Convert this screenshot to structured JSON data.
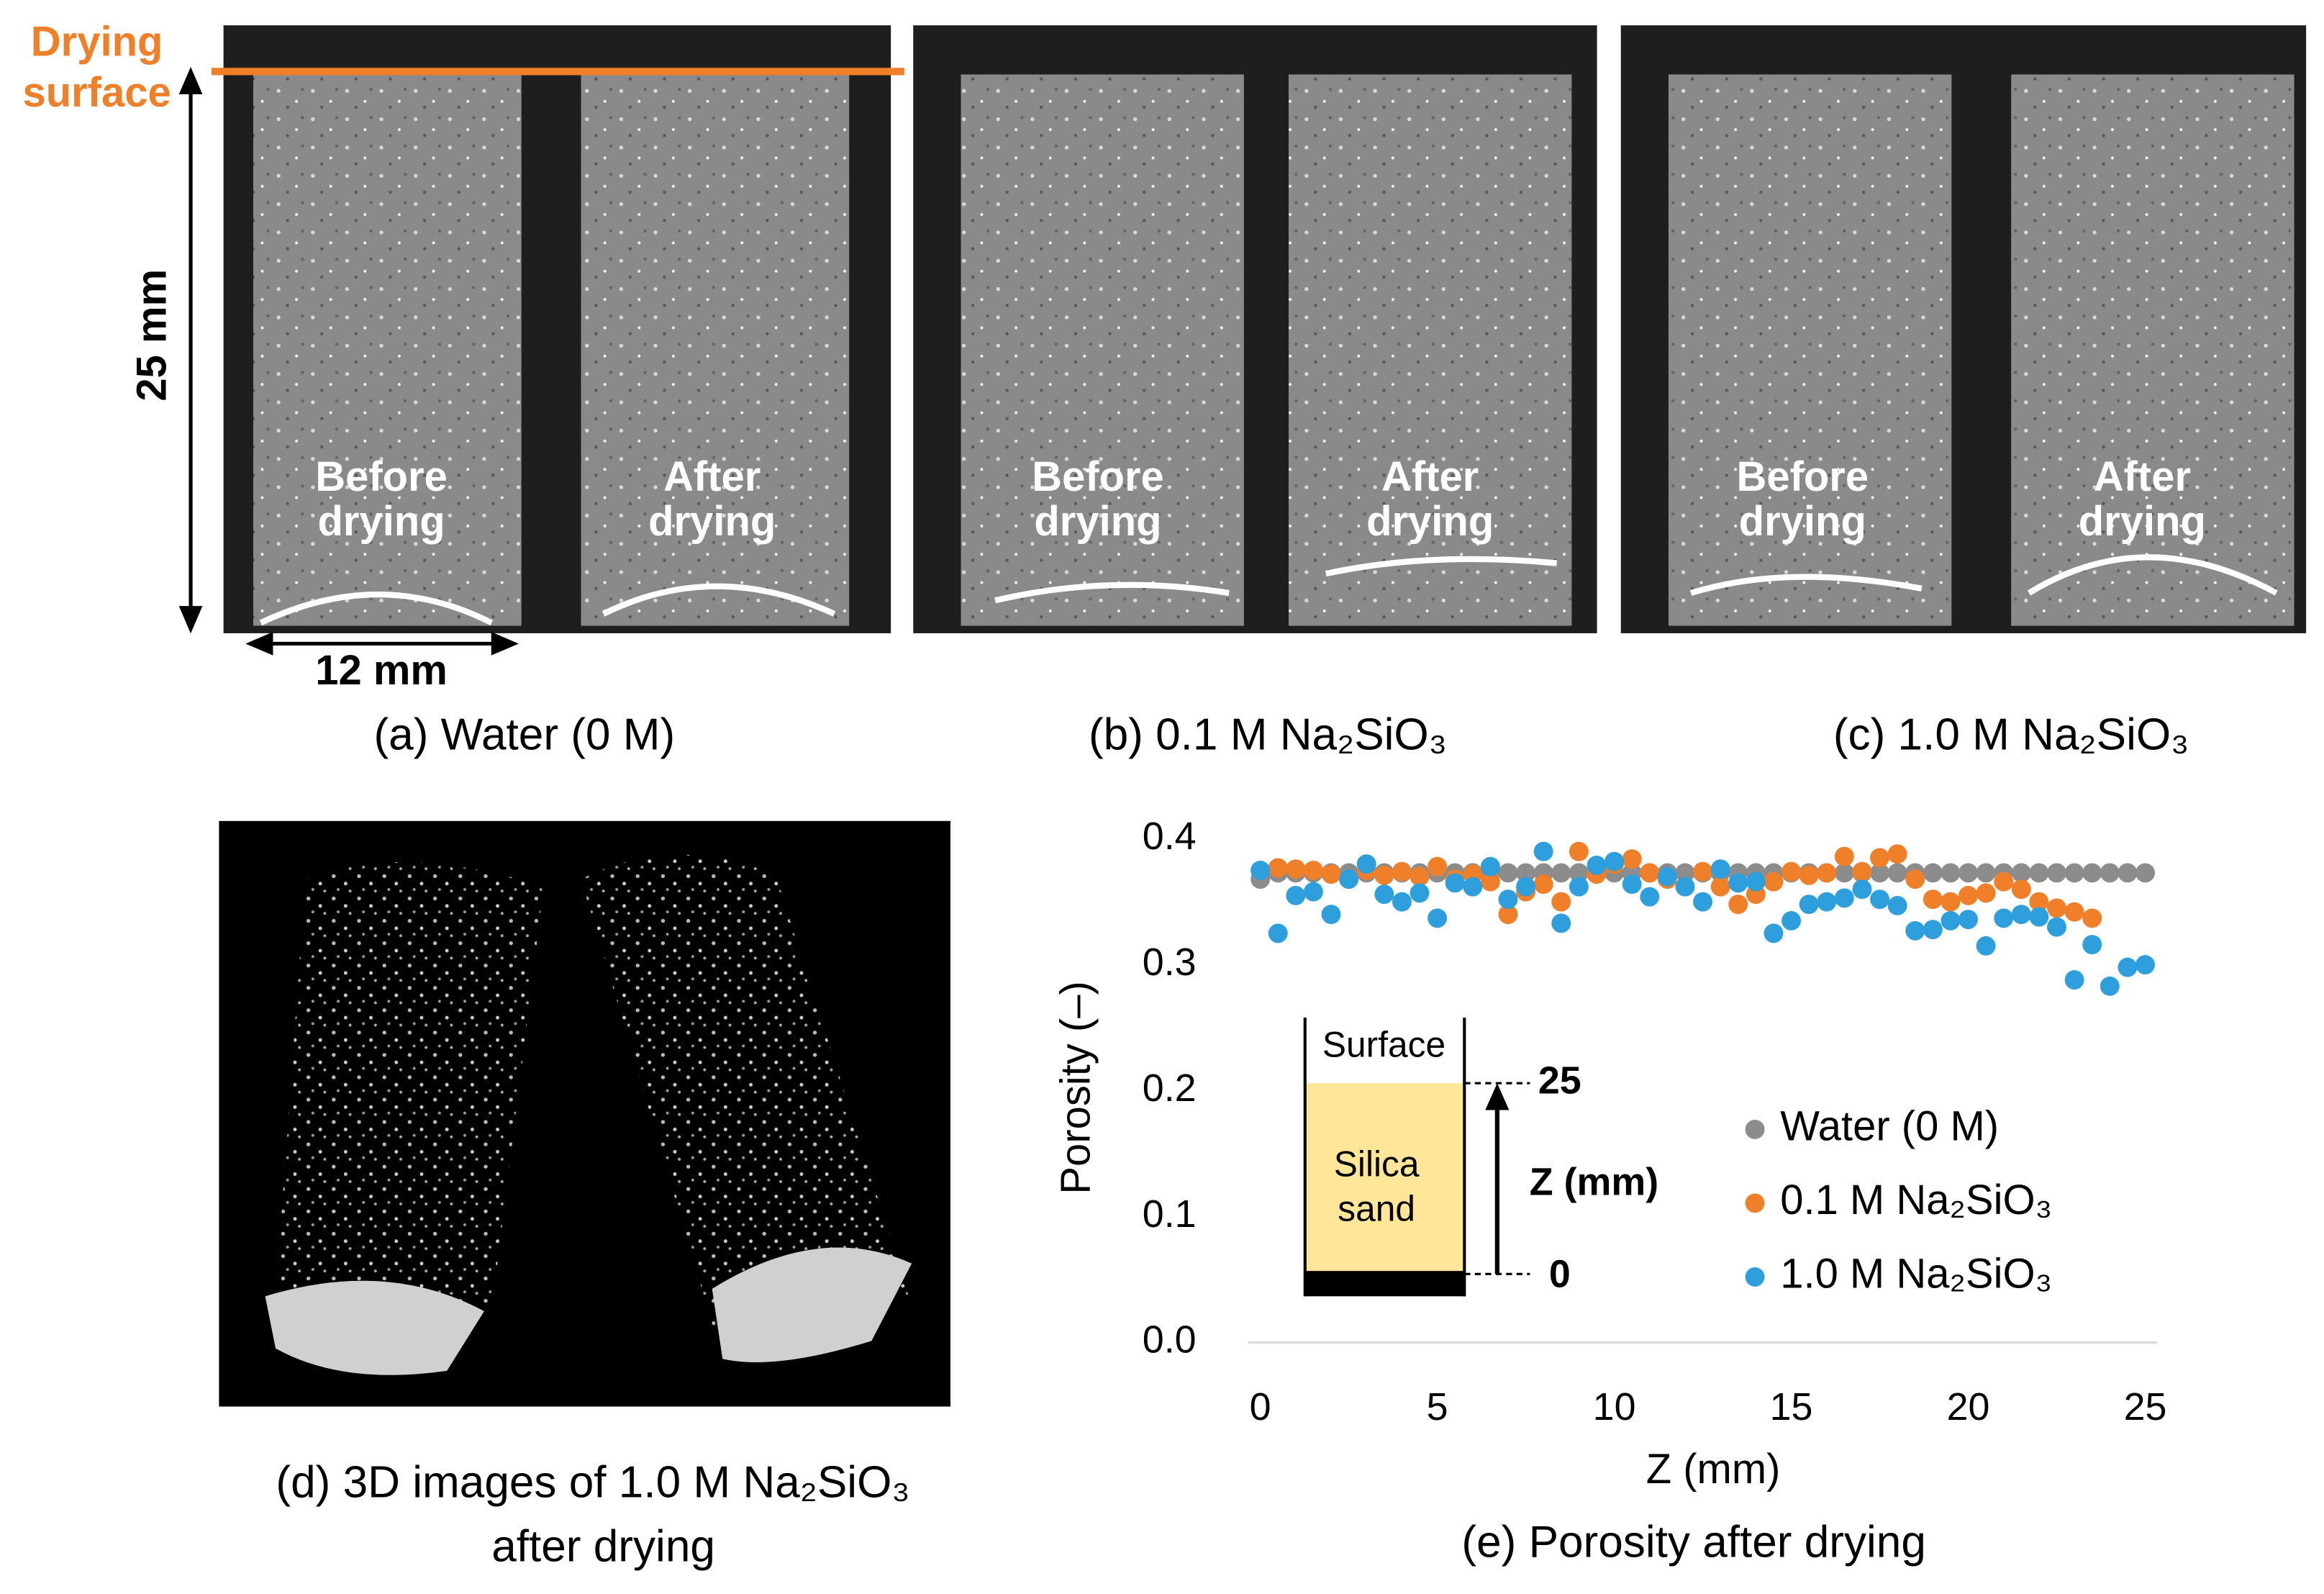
{
  "annotations": {
    "drying_surface": [
      "Drying",
      "surface"
    ],
    "height": "25 mm",
    "width": "12 mm"
  },
  "panels": [
    {
      "caption": "(a) Water (0 M)",
      "before": [
        "Before",
        "drying"
      ],
      "after": [
        "After",
        "drying"
      ]
    },
    {
      "caption": "(b) 0.1 M Na₂SiO₃",
      "before": [
        "Before",
        "drying"
      ],
      "after": [
        "After",
        "drying"
      ]
    },
    {
      "caption": "(c) 1.0 M Na₂SiO₃",
      "before": [
        "Before",
        "drying"
      ],
      "after": [
        "After",
        "drying"
      ]
    },
    {
      "caption": [
        "(d) 3D images of 1.0 M Na₂SiO₃",
        "after drying"
      ]
    }
  ],
  "chart_data": {
    "type": "scatter",
    "caption": "(e) Porosity after drying",
    "xlabel": "Z (mm)",
    "ylabel": "Porosity (–)",
    "xlim": [
      0,
      25
    ],
    "xticks": [
      0,
      5,
      10,
      15,
      20,
      25
    ],
    "ylim": [
      0,
      0.4
    ],
    "yticks": [
      {
        "value": 0,
        "label": "0.0"
      },
      0.1,
      0.2,
      0.3,
      0.4
    ],
    "inset": {
      "top": "Surface",
      "material": [
        "Silica",
        "sand"
      ],
      "top_value": "25",
      "bottom_value": "0",
      "axis": "Z (mm)"
    },
    "series": [
      {
        "name": "Water (0 M)",
        "color": "#8c8c8c",
        "x": [
          0,
          0.5,
          1,
          1.5,
          2,
          2.5,
          3,
          3.5,
          4,
          4.5,
          5,
          5.5,
          6,
          6.5,
          7,
          7.5,
          8,
          8.5,
          9,
          9.5,
          10,
          10.5,
          11,
          11.5,
          12,
          12.5,
          13,
          13.5,
          14,
          14.5,
          15,
          15.5,
          16,
          16.5,
          17,
          17.5,
          18,
          18.5,
          19,
          19.5,
          20,
          20.5,
          21,
          21.5,
          22,
          22.5,
          23,
          23.5,
          24,
          24.5,
          25
        ],
        "values": [
          0.368,
          0.373,
          0.373,
          0.373,
          0.373,
          0.373,
          0.373,
          0.373,
          0.373,
          0.373,
          0.373,
          0.373,
          0.373,
          0.373,
          0.373,
          0.373,
          0.373,
          0.373,
          0.373,
          0.373,
          0.373,
          0.373,
          0.373,
          0.373,
          0.373,
          0.373,
          0.373,
          0.373,
          0.373,
          0.373,
          0.373,
          0.373,
          0.373,
          0.373,
          0.373,
          0.373,
          0.373,
          0.373,
          0.373,
          0.373,
          0.373,
          0.373,
          0.373,
          0.373,
          0.373,
          0.373,
          0.373,
          0.373,
          0.373,
          0.373,
          0.373
        ]
      },
      {
        "name": "0.1 M  Na₂SiO₃",
        "color": "#f07f2a",
        "x": [
          0.5,
          1,
          1.5,
          2,
          2.5,
          3,
          3.5,
          4,
          4.5,
          5,
          5.5,
          6,
          6.5,
          7,
          7.5,
          8,
          8.5,
          9,
          9.5,
          10,
          10.5,
          11,
          11.5,
          12,
          12.5,
          13,
          13.5,
          14,
          14.5,
          15,
          15.5,
          16,
          16.5,
          17,
          17.5,
          18,
          18.5,
          19,
          19.5,
          20,
          20.5,
          21,
          21.5,
          22,
          22.5,
          23,
          23.5
        ],
        "values": [
          0.377,
          0.376,
          0.375,
          0.372,
          0.368,
          0.375,
          0.371,
          0.374,
          0.37,
          0.378,
          0.368,
          0.372,
          0.366,
          0.34,
          0.358,
          0.364,
          0.35,
          0.39,
          0.372,
          0.38,
          0.384,
          0.373,
          0.368,
          0.362,
          0.374,
          0.362,
          0.348,
          0.356,
          0.366,
          0.374,
          0.371,
          0.373,
          0.386,
          0.374,
          0.385,
          0.388,
          0.368,
          0.352,
          0.35,
          0.355,
          0.357,
          0.366,
          0.36,
          0.35,
          0.345,
          0.342,
          0.337
        ]
      },
      {
        "name": "1.0 M  Na₂SiO₃",
        "color": "#2e9fdc",
        "x": [
          0,
          0.5,
          1,
          1.5,
          2,
          2.5,
          3,
          3.5,
          4,
          4.5,
          5,
          5.5,
          6,
          6.5,
          7,
          7.5,
          8,
          8.5,
          9,
          9.5,
          10,
          10.5,
          11,
          11.5,
          12,
          12.5,
          13,
          13.5,
          14,
          14.5,
          15,
          15.5,
          16,
          16.5,
          17,
          17.5,
          18,
          18.5,
          19,
          19.5,
          20,
          20.5,
          21,
          21.5,
          22,
          22.5,
          23,
          23.5,
          24,
          24.5,
          25
        ],
        "values": [
          0.375,
          0.325,
          0.355,
          0.358,
          0.34,
          0.368,
          0.38,
          0.356,
          0.35,
          0.357,
          0.337,
          0.365,
          0.362,
          0.378,
          0.352,
          0.362,
          0.39,
          0.333,
          0.362,
          0.379,
          0.382,
          0.364,
          0.354,
          0.37,
          0.362,
          0.35,
          0.376,
          0.365,
          0.366,
          0.325,
          0.335,
          0.348,
          0.35,
          0.353,
          0.36,
          0.352,
          0.347,
          0.327,
          0.328,
          0.335,
          0.336,
          0.315,
          0.337,
          0.34,
          0.338,
          0.33,
          0.288,
          0.316,
          0.283,
          0.298,
          0.3
        ]
      }
    ]
  }
}
